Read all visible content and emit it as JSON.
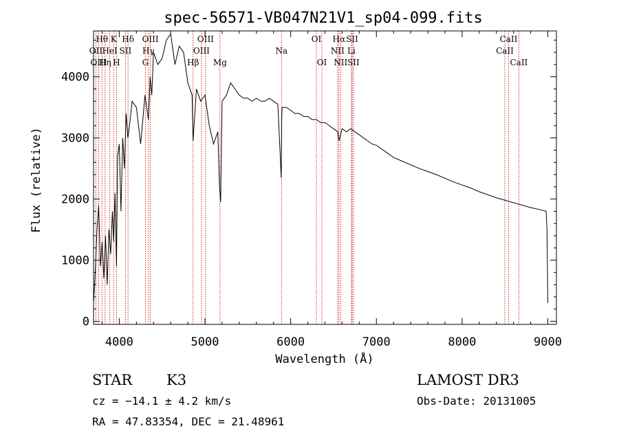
{
  "chart_data": {
    "type": "line",
    "title": "spec-56571-VB047N21V1_sp04-099.fits",
    "xlabel": "Wavelength (Å)",
    "ylabel": "Flux (relative)",
    "xlim": [
      3700,
      9100
    ],
    "ylim": [
      -50,
      4750
    ],
    "xticks": [
      4000,
      5000,
      6000,
      7000,
      8000,
      9000
    ],
    "yticks": [
      0,
      1000,
      2000,
      3000,
      4000
    ],
    "grid": false,
    "series": [
      {
        "name": "spectrum",
        "color": "#000000",
        "x": [
          3700,
          3720,
          3740,
          3760,
          3780,
          3800,
          3820,
          3840,
          3860,
          3880,
          3900,
          3920,
          3935,
          3950,
          3968,
          3980,
          4000,
          4020,
          4040,
          4060,
          4080,
          4100,
          4120,
          4150,
          4200,
          4250,
          4300,
          4340,
          4360,
          4380,
          4400,
          4450,
          4500,
          4550,
          4600,
          4650,
          4700,
          4750,
          4800,
          4850,
          4861,
          4900,
          4950,
          5000,
          5050,
          5100,
          5150,
          5170,
          5183,
          5200,
          5250,
          5300,
          5350,
          5400,
          5450,
          5500,
          5550,
          5600,
          5650,
          5700,
          5750,
          5800,
          5850,
          5890,
          5895,
          5900,
          5950,
          6000,
          6050,
          6100,
          6150,
          6200,
          6250,
          6300,
          6350,
          6400,
          6450,
          6500,
          6550,
          6563,
          6600,
          6650,
          6700,
          6750,
          6800,
          6850,
          6900,
          6950,
          7000,
          7050,
          7100,
          7150,
          7200,
          7300,
          7400,
          7500,
          7600,
          7700,
          7800,
          7900,
          8000,
          8100,
          8200,
          8300,
          8400,
          8500,
          8600,
          8700,
          8800,
          8900,
          8980,
          8990,
          9000
        ],
        "y": [
          300,
          800,
          1500,
          1900,
          900,
          1300,
          700,
          1400,
          600,
          1500,
          1100,
          1800,
          1300,
          2100,
          900,
          2700,
          2900,
          1800,
          3000,
          2500,
          3400,
          3000,
          3200,
          3600,
          3500,
          2900,
          3700,
          3300,
          4000,
          3700,
          4400,
          4200,
          4300,
          4600,
          4700,
          4200,
          4500,
          4400,
          3900,
          3700,
          2950,
          3800,
          3600,
          3700,
          3200,
          2900,
          3100,
          2200,
          1950,
          3600,
          3700,
          3900,
          3800,
          3700,
          3650,
          3650,
          3600,
          3650,
          3600,
          3600,
          3650,
          3600,
          3550,
          2350,
          3300,
          3500,
          3500,
          3450,
          3400,
          3400,
          3350,
          3350,
          3300,
          3300,
          3250,
          3250,
          3200,
          3150,
          3100,
          2950,
          3150,
          3100,
          3150,
          3100,
          3050,
          3000,
          2950,
          2900,
          2880,
          2830,
          2780,
          2730,
          2680,
          2620,
          2560,
          2500,
          2450,
          2400,
          2340,
          2280,
          2230,
          2180,
          2120,
          2070,
          2020,
          1980,
          1940,
          1900,
          1860,
          1830,
          1800,
          1500,
          300
        ]
      }
    ],
    "lines": [
      {
        "name": "Hθ",
        "wavelength": 3798,
        "row": 1
      },
      {
        "name": "OII",
        "wavelength": 3727,
        "row": 2
      },
      {
        "name": "OIII",
        "wavelength": 3760,
        "row": 3
      },
      {
        "name": "K",
        "wavelength": 3934,
        "row": 1
      },
      {
        "name": "HeI",
        "wavelength": 3889,
        "row": 2
      },
      {
        "name": "Hη",
        "wavelength": 3835,
        "row": 3
      },
      {
        "name": "Hδ",
        "wavelength": 4102,
        "row": 1
      },
      {
        "name": "SII",
        "wavelength": 4072,
        "row": 2
      },
      {
        "name": "H",
        "wavelength": 3968,
        "row": 3
      },
      {
        "name": "OIII",
        "wavelength": 4363,
        "row": 1
      },
      {
        "name": "Hγ",
        "wavelength": 4340,
        "row": 2
      },
      {
        "name": "G",
        "wavelength": 4305,
        "row": 3
      },
      {
        "name": "OIII",
        "wavelength": 5007,
        "row": 1
      },
      {
        "name": "OIII",
        "wavelength": 4959,
        "row": 2
      },
      {
        "name": "Hβ",
        "wavelength": 4861,
        "row": 3
      },
      {
        "name": "Mg",
        "wavelength": 5175,
        "row": 3
      },
      {
        "name": "Na",
        "wavelength": 5893,
        "row": 2
      },
      {
        "name": "OI",
        "wavelength": 6300,
        "row": 1
      },
      {
        "name": "OI",
        "wavelength": 6364,
        "row": 3
      },
      {
        "name": "Hα",
        "wavelength": 6563,
        "row": 1
      },
      {
        "name": "SII",
        "wavelength": 6717,
        "row": 1
      },
      {
        "name": "NII",
        "wavelength": 6548,
        "row": 2
      },
      {
        "name": "Li",
        "wavelength": 6708,
        "row": 2
      },
      {
        "name": "NII",
        "wavelength": 6583,
        "row": 3
      },
      {
        "name": "SII",
        "wavelength": 6731,
        "row": 3
      },
      {
        "name": "CaII",
        "wavelength": 8542,
        "row": 1
      },
      {
        "name": "CaII",
        "wavelength": 8498,
        "row": 2
      },
      {
        "name": "CaII",
        "wavelength": 8662,
        "row": 3
      }
    ]
  },
  "info": {
    "class_label": "STAR",
    "subclass": "K3",
    "survey": "LAMOST DR3",
    "redshift": "cz = −14.1 ± 4.2 km/s",
    "obs_date": "Obs-Date: 20131005",
    "coords": "RA =  47.83354, DEC =  21.48961"
  },
  "colors": {
    "spectrum": "#000000",
    "line_markers": "#d10000",
    "axes": "#000000",
    "background": "#ffffff"
  }
}
